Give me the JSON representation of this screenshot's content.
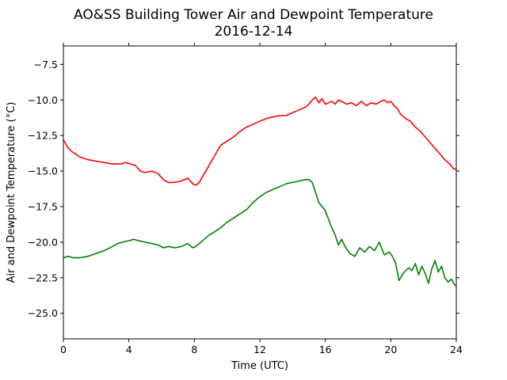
{
  "chart_data": {
    "type": "line",
    "title_line1": "AO&SS Building Tower Air and Dewpoint Temperature",
    "title_line2": "2016-12-14",
    "xlabel": "Time (UTC)",
    "ylabel": "Air and Dewpoint Temperature (°C)",
    "xlim": [
      0,
      24
    ],
    "ylim": [
      -26.8,
      -6.2
    ],
    "xticks": [
      0,
      4,
      8,
      12,
      16,
      20,
      24
    ],
    "xtick_labels": [
      "0",
      "4",
      "8",
      "12",
      "16",
      "20",
      "24"
    ],
    "yticks": [
      -7.5,
      -10.0,
      -12.5,
      -15.0,
      -17.5,
      -20.0,
      -22.5,
      -25.0
    ],
    "ytick_labels": [
      "−7.5",
      "−10.0",
      "−12.5",
      "−15.0",
      "−17.5",
      "−20.0",
      "−22.5",
      "−25.0"
    ],
    "grid": false,
    "series": [
      {
        "color": "#ff0000",
        "x": [
          0,
          0.3,
          0.6,
          1.0,
          1.5,
          2.0,
          2.5,
          3.0,
          3.5,
          3.8,
          4.1,
          4.4,
          4.7,
          5.0,
          5.4,
          5.8,
          6.1,
          6.4,
          6.8,
          7.2,
          7.6,
          7.9,
          8.1,
          8.3,
          8.6,
          8.9,
          9.2,
          9.6,
          10.0,
          10.4,
          10.8,
          11.2,
          11.6,
          12.0,
          12.4,
          12.8,
          13.2,
          13.6,
          14.0,
          14.4,
          14.8,
          15.0,
          15.2,
          15.4,
          15.6,
          15.8,
          16.0,
          16.2,
          16.4,
          16.6,
          16.8,
          17.0,
          17.3,
          17.6,
          17.9,
          18.2,
          18.5,
          18.8,
          19.1,
          19.4,
          19.6,
          19.8,
          20.0,
          20.2,
          20.4,
          20.6,
          20.9,
          21.2,
          21.5,
          21.8,
          22.1,
          22.4,
          22.7,
          23.0,
          23.3,
          23.6,
          23.8,
          24.0
        ],
        "y": [
          -12.8,
          -13.4,
          -13.7,
          -14.0,
          -14.2,
          -14.3,
          -14.4,
          -14.5,
          -14.5,
          -14.4,
          -14.5,
          -14.6,
          -15.0,
          -15.1,
          -15.0,
          -15.2,
          -15.6,
          -15.8,
          -15.8,
          -15.7,
          -15.5,
          -15.9,
          -16.0,
          -15.8,
          -15.2,
          -14.6,
          -14.0,
          -13.2,
          -12.9,
          -12.6,
          -12.2,
          -11.9,
          -11.7,
          -11.5,
          -11.3,
          -11.2,
          -11.1,
          -11.1,
          -10.9,
          -10.7,
          -10.5,
          -10.3,
          -10.0,
          -9.8,
          -10.2,
          -9.9,
          -10.3,
          -10.2,
          -10.1,
          -10.3,
          -10.0,
          -10.1,
          -10.3,
          -10.2,
          -10.4,
          -10.1,
          -10.4,
          -10.2,
          -10.3,
          -10.1,
          -10.0,
          -10.2,
          -10.1,
          -10.4,
          -10.6,
          -11.0,
          -11.3,
          -11.5,
          -11.9,
          -12.2,
          -12.6,
          -13.0,
          -13.4,
          -13.8,
          -14.2,
          -14.5,
          -14.8,
          -14.9
        ]
      },
      {
        "color": "#008000",
        "x": [
          0,
          0.3,
          0.6,
          1.0,
          1.5,
          2.0,
          2.5,
          3.0,
          3.3,
          3.6,
          4.0,
          4.3,
          4.6,
          5.0,
          5.4,
          5.8,
          6.1,
          6.4,
          6.8,
          7.2,
          7.6,
          7.9,
          8.1,
          8.3,
          8.6,
          8.9,
          9.2,
          9.6,
          10.0,
          10.4,
          10.8,
          11.2,
          11.6,
          12.0,
          12.4,
          12.8,
          13.2,
          13.6,
          14.0,
          14.4,
          14.8,
          15.0,
          15.2,
          15.4,
          15.6,
          15.8,
          16.0,
          16.2,
          16.4,
          16.6,
          16.8,
          17.0,
          17.2,
          17.5,
          17.8,
          18.1,
          18.4,
          18.7,
          19.0,
          19.3,
          19.6,
          19.9,
          20.1,
          20.3,
          20.5,
          20.7,
          20.9,
          21.1,
          21.3,
          21.5,
          21.7,
          21.9,
          22.1,
          22.3,
          22.5,
          22.7,
          22.9,
          23.1,
          23.3,
          23.5,
          23.7,
          23.9,
          24.0
        ],
        "y": [
          -21.1,
          -21.0,
          -21.1,
          -21.1,
          -21.0,
          -20.8,
          -20.6,
          -20.3,
          -20.1,
          -20.0,
          -19.9,
          -19.8,
          -19.9,
          -20.0,
          -20.1,
          -20.2,
          -20.4,
          -20.3,
          -20.4,
          -20.3,
          -20.1,
          -20.4,
          -20.3,
          -20.1,
          -19.8,
          -19.5,
          -19.3,
          -19.0,
          -18.6,
          -18.3,
          -18.0,
          -17.7,
          -17.2,
          -16.8,
          -16.5,
          -16.3,
          -16.1,
          -15.9,
          -15.8,
          -15.7,
          -15.6,
          -15.6,
          -15.8,
          -16.5,
          -17.2,
          -17.5,
          -17.8,
          -18.4,
          -19.0,
          -19.5,
          -20.2,
          -19.8,
          -20.3,
          -20.8,
          -21.0,
          -20.4,
          -20.7,
          -20.3,
          -20.6,
          -20.0,
          -20.9,
          -20.7,
          -21.0,
          -21.5,
          -22.7,
          -22.3,
          -22.0,
          -21.8,
          -22.0,
          -21.5,
          -22.3,
          -21.7,
          -22.2,
          -22.9,
          -21.9,
          -21.3,
          -22.1,
          -21.7,
          -22.5,
          -22.8,
          -22.6,
          -23.0,
          -23.1
        ]
      }
    ]
  }
}
